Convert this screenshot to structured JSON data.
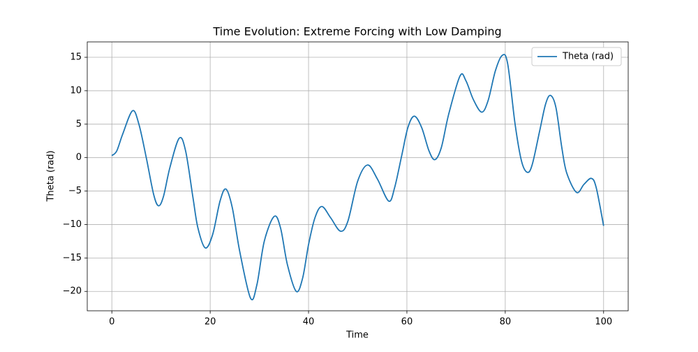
{
  "chart_data": {
    "type": "line",
    "title": "Time Evolution: Extreme Forcing with Low Damping",
    "x_label": "Time",
    "y_label": "Theta (rad)",
    "x": [
      0,
      1,
      2.2,
      4.2,
      5.5,
      7,
      8.5,
      9.5,
      10.5,
      11.8,
      13.7,
      15,
      16.5,
      17.5,
      19,
      20.5,
      22,
      23.2,
      24.5,
      26,
      28.2,
      29.5,
      31,
      33,
      34.3,
      35.7,
      37.5,
      38.8,
      40,
      41.3,
      42.7,
      44.5,
      46.5,
      48,
      50,
      52,
      54,
      56.3,
      57.5,
      59,
      60.2,
      61.5,
      63,
      64.5,
      65.7,
      67,
      68.5,
      70.8,
      72,
      73.5,
      75.2,
      76.5,
      78,
      79.4,
      80.5,
      82,
      83.3,
      84.5,
      85.5,
      87,
      88.2,
      89.2,
      90.3,
      91.5,
      92.5,
      94.5,
      96,
      97.5,
      98.5,
      100
    ],
    "series": [
      {
        "name": "Theta (rad)",
        "color": "#1f77b4",
        "values": [
          0.3,
          1.0,
          3.5,
          7.0,
          5.0,
          0,
          -5.5,
          -7.2,
          -5.8,
          -1.5,
          2.9,
          1.0,
          -6,
          -10.5,
          -13.5,
          -11.5,
          -6.5,
          -4.7,
          -7.5,
          -14,
          -21,
          -19,
          -12.5,
          -8.8,
          -10.5,
          -16,
          -20,
          -18,
          -13,
          -9,
          -7.3,
          -9,
          -11,
          -9.5,
          -3.5,
          -1.1,
          -3.2,
          -6.5,
          -4.5,
          0.5,
          4.5,
          6.2,
          4.5,
          1,
          -0.3,
          1.5,
          6.5,
          12.2,
          11.5,
          8.7,
          6.8,
          8.5,
          13,
          15.3,
          14,
          5,
          -0.5,
          -2.2,
          -1,
          4,
          8,
          9.3,
          7.5,
          1.5,
          -2.3,
          -5.2,
          -4,
          -3.1,
          -4.5,
          -10.2
        ]
      }
    ],
    "xlim": [
      -5,
      105
    ],
    "ylim": [
      -22.9,
      17.3
    ],
    "xticks": [
      0,
      20,
      40,
      60,
      80,
      100
    ],
    "yticks": [
      {
        "value": -20,
        "label": "−20"
      },
      {
        "value": -15,
        "label": "−15"
      },
      {
        "value": -10,
        "label": "−10"
      },
      {
        "value": -5,
        "label": "−5"
      },
      0,
      5,
      10,
      15
    ],
    "grid": true,
    "legend": "upper right"
  }
}
